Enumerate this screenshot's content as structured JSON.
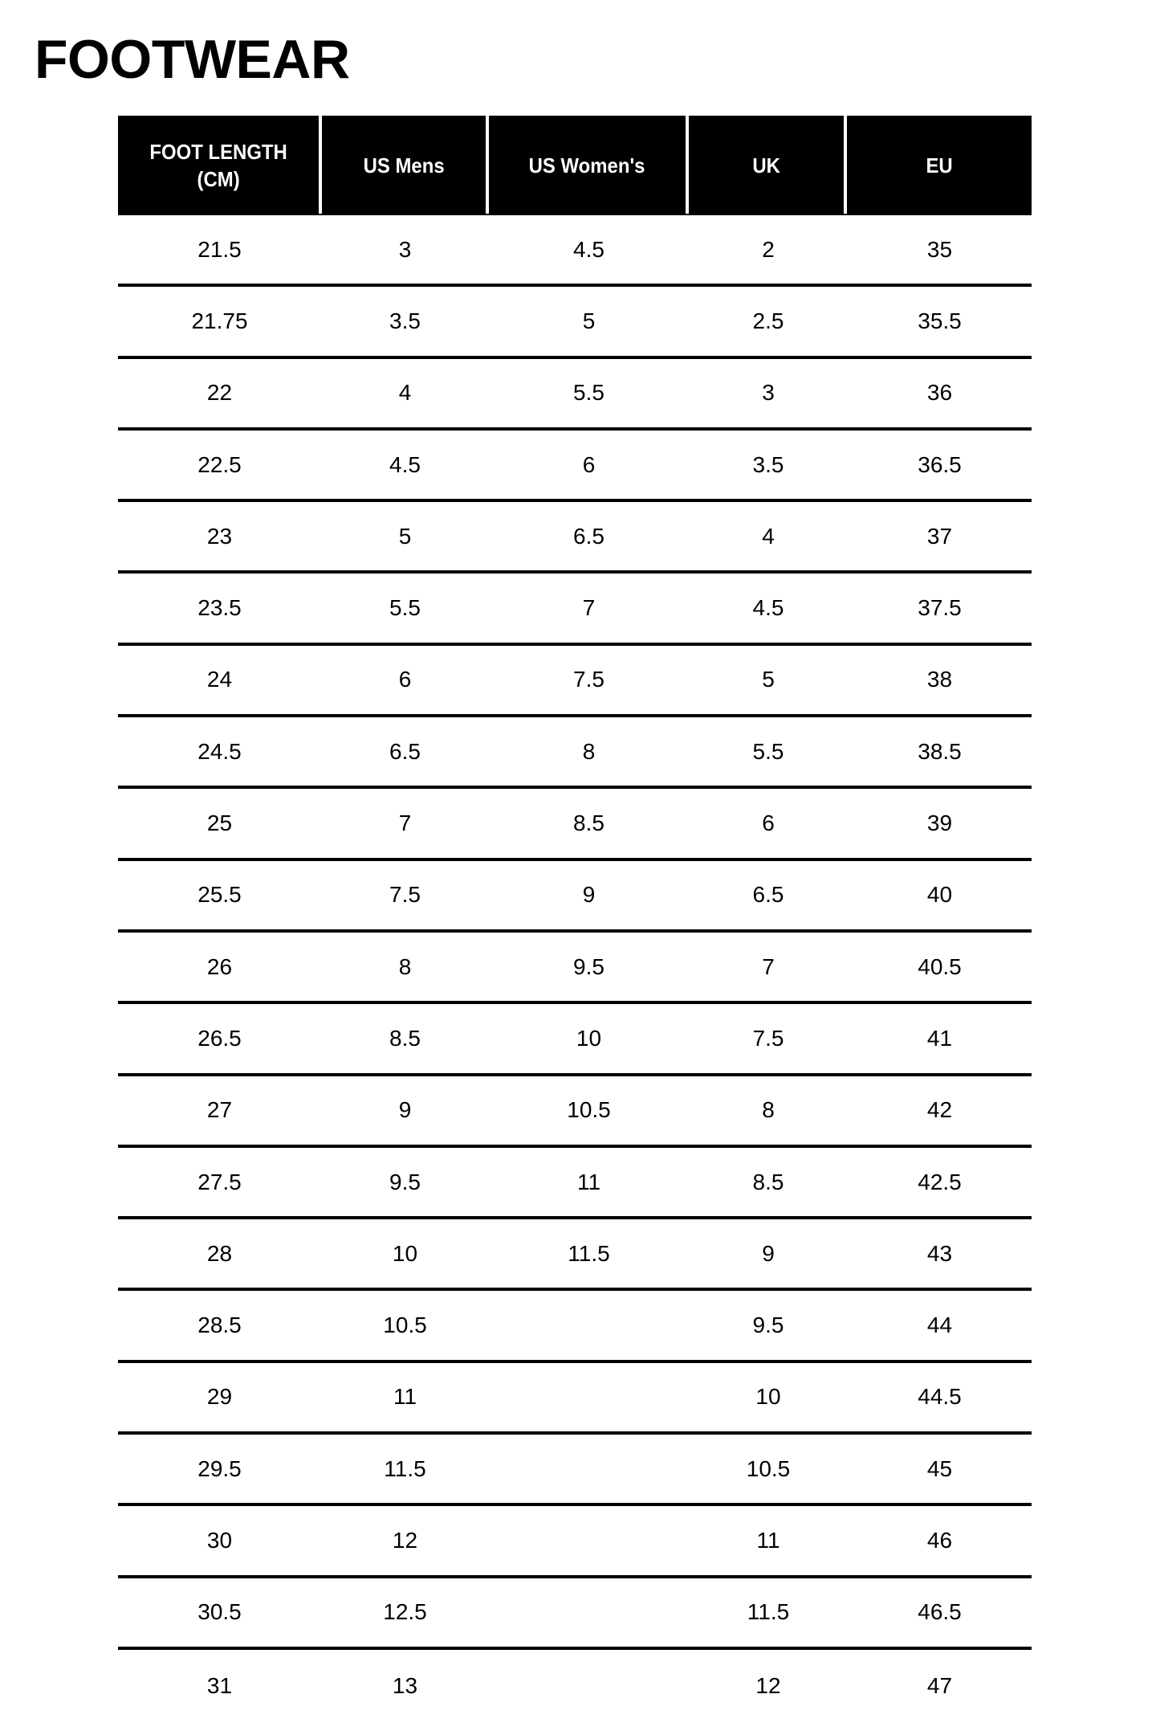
{
  "title": "FOOTWEAR",
  "columns": [
    "FOOT LENGTH (CM)",
    "US Mens",
    "US Women's",
    "UK",
    "EU"
  ],
  "rows": [
    [
      "21.5",
      "3",
      "4.5",
      "2",
      "35"
    ],
    [
      "21.75",
      "3.5",
      "5",
      "2.5",
      "35.5"
    ],
    [
      "22",
      "4",
      "5.5",
      "3",
      "36"
    ],
    [
      "22.5",
      "4.5",
      "6",
      "3.5",
      "36.5"
    ],
    [
      "23",
      "5",
      "6.5",
      "4",
      "37"
    ],
    [
      "23.5",
      "5.5",
      "7",
      "4.5",
      "37.5"
    ],
    [
      "24",
      "6",
      "7.5",
      "5",
      "38"
    ],
    [
      "24.5",
      "6.5",
      "8",
      "5.5",
      "38.5"
    ],
    [
      "25",
      "7",
      "8.5",
      "6",
      "39"
    ],
    [
      "25.5",
      "7.5",
      "9",
      "6.5",
      "40"
    ],
    [
      "26",
      "8",
      "9.5",
      "7",
      "40.5"
    ],
    [
      "26.5",
      "8.5",
      "10",
      "7.5",
      "41"
    ],
    [
      "27",
      "9",
      "10.5",
      "8",
      "42"
    ],
    [
      "27.5",
      "9.5",
      "11",
      "8.5",
      "42.5"
    ],
    [
      "28",
      "10",
      "11.5",
      "9",
      "43"
    ],
    [
      "28.5",
      "10.5",
      "",
      "9.5",
      "44"
    ],
    [
      "29",
      "11",
      "",
      "10",
      "44.5"
    ],
    [
      "29.5",
      "11.5",
      "",
      "10.5",
      "45"
    ],
    [
      "30",
      "12",
      "",
      "11",
      "46"
    ],
    [
      "30.5",
      "12.5",
      "",
      "11.5",
      "46.5"
    ],
    [
      "31",
      "13",
      "",
      "12",
      "47"
    ]
  ]
}
